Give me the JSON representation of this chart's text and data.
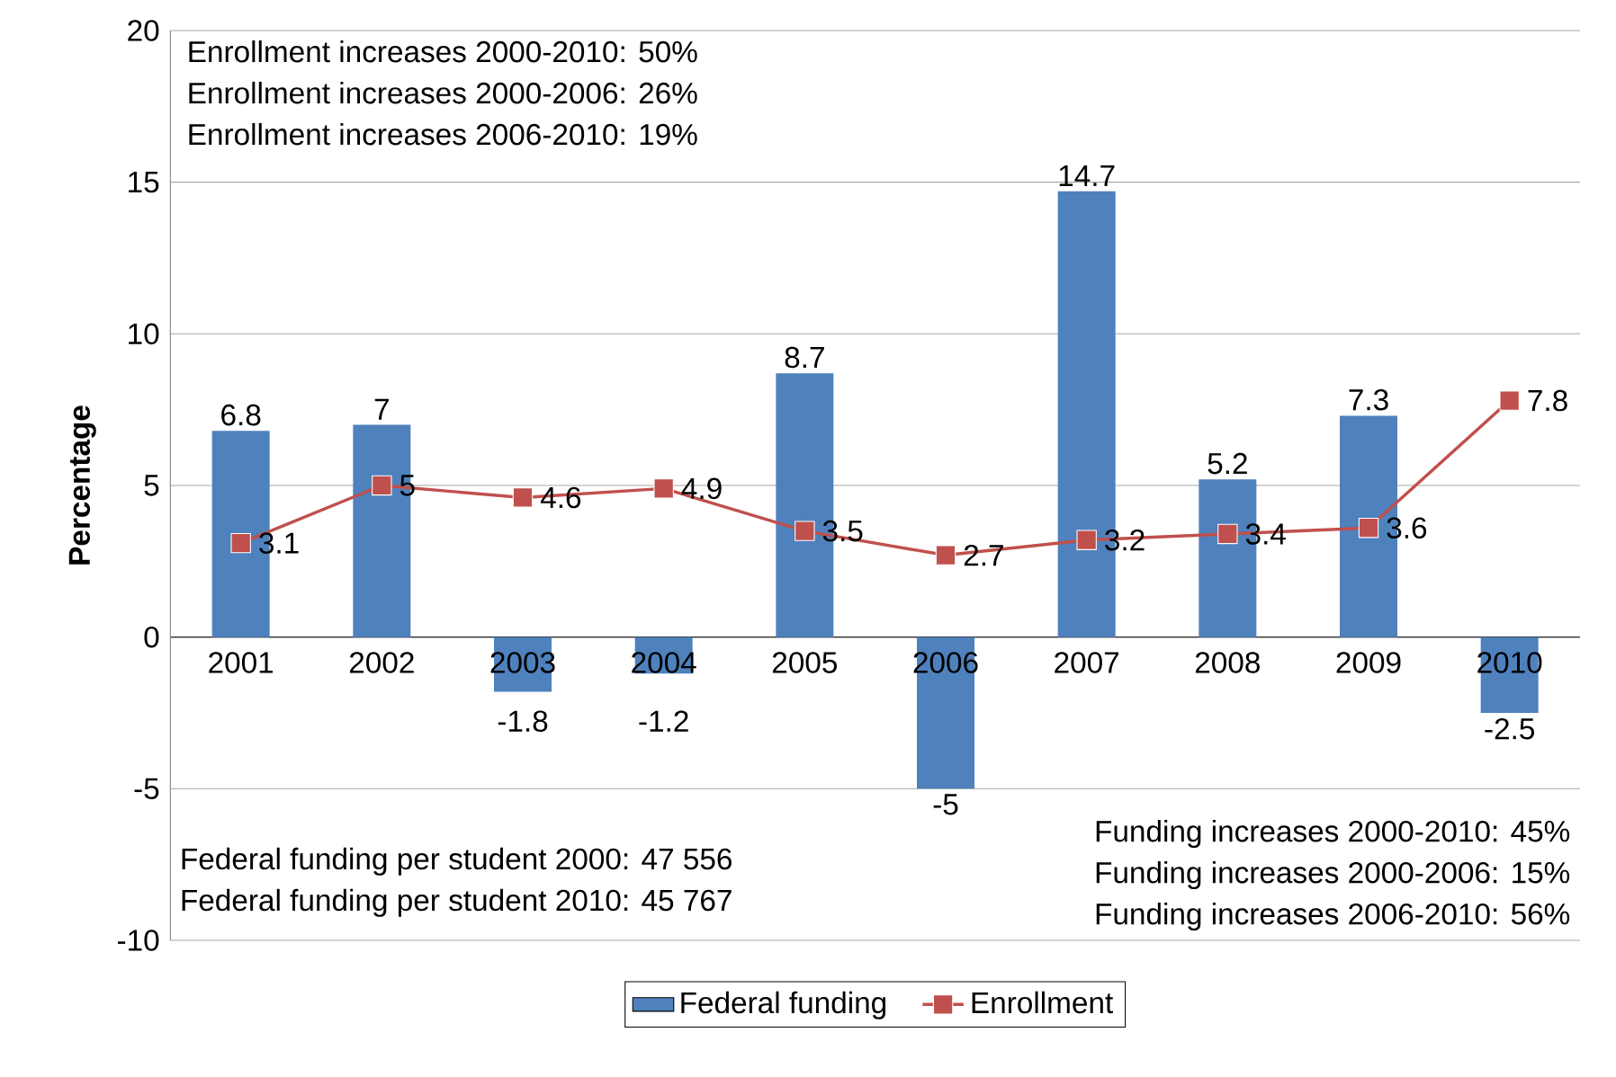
{
  "chart_data": {
    "type": "bar",
    "ylabel": "Percentage",
    "categories": [
      "2001",
      "2002",
      "2003",
      "2004",
      "2005",
      "2006",
      "2007",
      "2008",
      "2009",
      "2010"
    ],
    "series": [
      {
        "name": "Federal funding",
        "color": "#4f81bd",
        "values": [
          6.8,
          7,
          -1.8,
          -1.2,
          8.7,
          -5,
          14.7,
          5.2,
          7.3,
          -2.5
        ]
      },
      {
        "name": "Enrollment",
        "type": "line",
        "color": "#c0504d",
        "marker": "square",
        "values": [
          3.1,
          5,
          4.6,
          4.9,
          3.5,
          2.7,
          3.2,
          3.4,
          3.6,
          7.8
        ]
      }
    ],
    "ylim": [
      -10,
      20
    ],
    "yticks": [
      -10,
      -5,
      0,
      5,
      10,
      15,
      20
    ],
    "grid": "y",
    "legend": "bottom",
    "data_labels": true,
    "annotations": [
      "Enrollment increases 2000-2010: 50%",
      "Enrollment increases 2000-2006: 26%",
      "Enrollment increases 2006-2010: 19%",
      "Federal funding per student 2000: 47 556",
      "Federal funding per student 2010: 45 767",
      "Funding increases 2000-2010: 45%",
      "Funding increases 2000-2006: 15%",
      "Funding increases 2006-2010: 56%"
    ]
  }
}
